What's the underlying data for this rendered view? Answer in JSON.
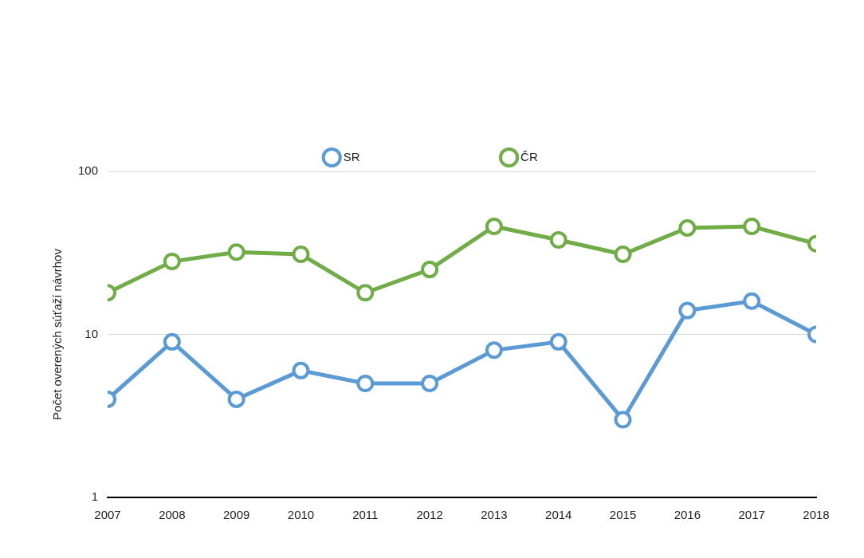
{
  "chart_data": {
    "type": "line",
    "y_label": "Počet overených súťaží návrhov",
    "categories": [
      "2007",
      "2008",
      "2009",
      "2010",
      "2011",
      "2012",
      "2013",
      "2014",
      "2015",
      "2016",
      "2017",
      "2018"
    ],
    "series": [
      {
        "name": "SR",
        "color": "#5b9bd5",
        "values": [
          4,
          9,
          4,
          6,
          5,
          5,
          8,
          9,
          3,
          14,
          16,
          10
        ]
      },
      {
        "name": "ČR",
        "color": "#70ad47",
        "values": [
          18,
          28,
          32,
          31,
          18,
          25,
          46,
          38,
          31,
          45,
          46,
          36
        ]
      }
    ],
    "ylim": [
      1,
      100
    ],
    "yticks": [
      1,
      10,
      100
    ],
    "log": "y",
    "grid": true,
    "legend": "top",
    "marker": "circle"
  }
}
